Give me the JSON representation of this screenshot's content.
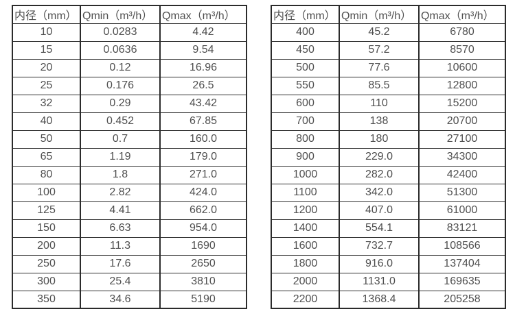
{
  "page": {
    "background_color": "#ffffff",
    "border_color": "#2b2b2b",
    "text_color": "#4f4f4f"
  },
  "tables": [
    {
      "name": "flow-spec-table-small-diameters",
      "headers": [
        "内径（mm）",
        "Qmin（m³/h）",
        "Qmax（m³/h）"
      ],
      "rows": [
        [
          "10",
          "0.0283",
          "4.42"
        ],
        [
          "15",
          "0.0636",
          "9.54"
        ],
        [
          "20",
          "0.12",
          "16.96"
        ],
        [
          "25",
          "0.176",
          "26.5"
        ],
        [
          "32",
          "0.29",
          "43.42"
        ],
        [
          "40",
          "0.452",
          "67.85"
        ],
        [
          "50",
          "0.7",
          "160.0"
        ],
        [
          "65",
          "1.19",
          "179.0"
        ],
        [
          "80",
          "1.8",
          "271.0"
        ],
        [
          "100",
          "2.82",
          "424.0"
        ],
        [
          "125",
          "4.41",
          "662.0"
        ],
        [
          "150",
          "6.63",
          "954.0"
        ],
        [
          "200",
          "11.3",
          "1690"
        ],
        [
          "250",
          "17.6",
          "2650"
        ],
        [
          "300",
          "25.4",
          "3810"
        ],
        [
          "350",
          "34.6",
          "5190"
        ]
      ]
    },
    {
      "name": "flow-spec-table-large-diameters",
      "headers": [
        "内径（mm）",
        "Qmin（m³/h）",
        "Qmax（m³/h）"
      ],
      "rows": [
        [
          "400",
          "45.2",
          "6780"
        ],
        [
          "450",
          "57.2",
          "8570"
        ],
        [
          "500",
          "77.6",
          "10600"
        ],
        [
          "550",
          "85.5",
          "12800"
        ],
        [
          "600",
          "110",
          "15200"
        ],
        [
          "700",
          "138",
          "20700"
        ],
        [
          "800",
          "180",
          "27100"
        ],
        [
          "900",
          "229.0",
          "34300"
        ],
        [
          "1000",
          "282.0",
          "42400"
        ],
        [
          "1100",
          "342.0",
          "51300"
        ],
        [
          "1200",
          "407.0",
          "61000"
        ],
        [
          "1400",
          "554.1",
          "83121"
        ],
        [
          "1600",
          "732.7",
          "108566"
        ],
        [
          "1800",
          "916.0",
          "137404"
        ],
        [
          "2000",
          "1131.0",
          "169635"
        ],
        [
          "2200",
          "1368.4",
          "205258"
        ]
      ]
    }
  ]
}
